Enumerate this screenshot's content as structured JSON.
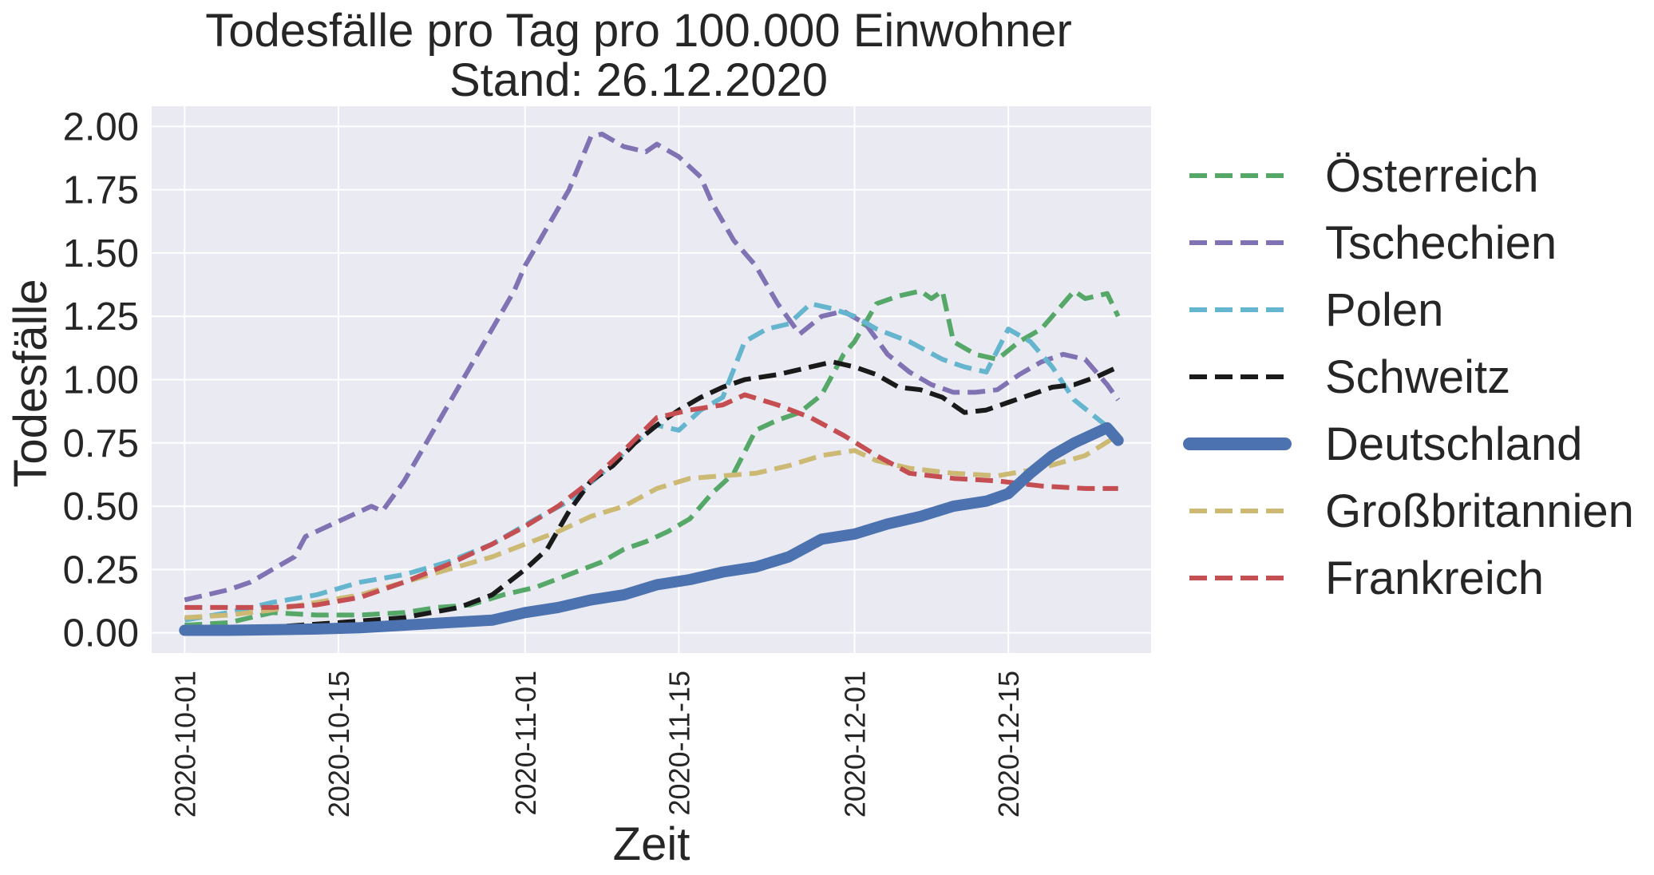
{
  "chart_data": {
    "type": "line",
    "title": "Todesfälle pro Tag pro 100.000 Einwohner",
    "subtitle": "Stand: 26.12.2020",
    "xlabel": "Zeit",
    "ylabel": "Todesfälle",
    "ylim": [
      -0.08,
      2.08
    ],
    "xlim": [
      "2020-09-28",
      "2020-12-28"
    ],
    "yticks": [
      "0.00",
      "0.25",
      "0.50",
      "0.75",
      "1.00",
      "1.25",
      "1.50",
      "1.75",
      "2.00"
    ],
    "xticks": [
      "2020-10-01",
      "2020-10-15",
      "2020-11-01",
      "2020-11-15",
      "2020-12-01",
      "2020-12-15"
    ],
    "grid": true,
    "legend_position": "outside-right",
    "series": [
      {
        "name": "Österreich",
        "color": "#55a868",
        "style": "dashed",
        "points": [
          [
            "2020-10-01",
            0.03
          ],
          [
            "2020-10-05",
            0.04
          ],
          [
            "2020-10-09",
            0.08
          ],
          [
            "2020-10-13",
            0.07
          ],
          [
            "2020-10-17",
            0.07
          ],
          [
            "2020-10-21",
            0.08
          ],
          [
            "2020-10-24",
            0.1
          ],
          [
            "2020-10-27",
            0.11
          ],
          [
            "2020-10-30",
            0.15
          ],
          [
            "2020-11-02",
            0.18
          ],
          [
            "2020-11-05",
            0.23
          ],
          [
            "2020-11-08",
            0.28
          ],
          [
            "2020-11-10",
            0.33
          ],
          [
            "2020-11-12",
            0.36
          ],
          [
            "2020-11-14",
            0.4
          ],
          [
            "2020-11-16",
            0.45
          ],
          [
            "2020-11-18",
            0.55
          ],
          [
            "2020-11-20",
            0.63
          ],
          [
            "2020-11-22",
            0.8
          ],
          [
            "2020-11-24",
            0.84
          ],
          [
            "2020-11-26",
            0.87
          ],
          [
            "2020-11-28",
            0.94
          ],
          [
            "2020-11-30",
            1.1
          ],
          [
            "2020-12-01",
            1.15
          ],
          [
            "2020-12-03",
            1.3
          ],
          [
            "2020-12-05",
            1.33
          ],
          [
            "2020-12-07",
            1.35
          ],
          [
            "2020-12-08",
            1.32
          ],
          [
            "2020-12-09",
            1.35
          ],
          [
            "2020-12-10",
            1.15
          ],
          [
            "2020-12-12",
            1.1
          ],
          [
            "2020-12-14",
            1.08
          ],
          [
            "2020-12-16",
            1.15
          ],
          [
            "2020-12-18",
            1.2
          ],
          [
            "2020-12-20",
            1.3
          ],
          [
            "2020-12-21",
            1.35
          ],
          [
            "2020-12-22",
            1.32
          ],
          [
            "2020-12-24",
            1.34
          ],
          [
            "2020-12-25",
            1.25
          ]
        ]
      },
      {
        "name": "Tschechien",
        "color": "#8172b3",
        "style": "dashed",
        "points": [
          [
            "2020-10-01",
            0.13
          ],
          [
            "2020-10-03",
            0.15
          ],
          [
            "2020-10-05",
            0.17
          ],
          [
            "2020-10-07",
            0.2
          ],
          [
            "2020-10-09",
            0.25
          ],
          [
            "2020-10-11",
            0.3
          ],
          [
            "2020-10-12",
            0.38
          ],
          [
            "2020-10-14",
            0.42
          ],
          [
            "2020-10-16",
            0.46
          ],
          [
            "2020-10-18",
            0.5
          ],
          [
            "2020-10-19",
            0.48
          ],
          [
            "2020-10-21",
            0.6
          ],
          [
            "2020-10-23",
            0.75
          ],
          [
            "2020-10-25",
            0.9
          ],
          [
            "2020-10-27",
            1.05
          ],
          [
            "2020-10-29",
            1.2
          ],
          [
            "2020-10-31",
            1.35
          ],
          [
            "2020-11-01",
            1.45
          ],
          [
            "2020-11-03",
            1.6
          ],
          [
            "2020-11-05",
            1.75
          ],
          [
            "2020-11-07",
            1.96
          ],
          [
            "2020-11-08",
            1.97
          ],
          [
            "2020-11-10",
            1.92
          ],
          [
            "2020-11-12",
            1.9
          ],
          [
            "2020-11-13",
            1.93
          ],
          [
            "2020-11-15",
            1.88
          ],
          [
            "2020-11-17",
            1.8
          ],
          [
            "2020-11-18",
            1.7
          ],
          [
            "2020-11-20",
            1.55
          ],
          [
            "2020-11-22",
            1.45
          ],
          [
            "2020-11-24",
            1.3
          ],
          [
            "2020-11-26",
            1.18
          ],
          [
            "2020-11-28",
            1.25
          ],
          [
            "2020-11-30",
            1.27
          ],
          [
            "2020-12-02",
            1.22
          ],
          [
            "2020-12-04",
            1.1
          ],
          [
            "2020-12-06",
            1.03
          ],
          [
            "2020-12-08",
            0.98
          ],
          [
            "2020-12-10",
            0.95
          ],
          [
            "2020-12-12",
            0.95
          ],
          [
            "2020-12-14",
            0.96
          ],
          [
            "2020-12-16",
            1.02
          ],
          [
            "2020-12-18",
            1.07
          ],
          [
            "2020-12-20",
            1.1
          ],
          [
            "2020-12-22",
            1.08
          ],
          [
            "2020-12-24",
            0.98
          ],
          [
            "2020-12-25",
            0.92
          ]
        ]
      },
      {
        "name": "Polen",
        "color": "#64b5cd",
        "style": "dashed",
        "points": [
          [
            "2020-10-01",
            0.05
          ],
          [
            "2020-10-05",
            0.08
          ],
          [
            "2020-10-09",
            0.12
          ],
          [
            "2020-10-13",
            0.15
          ],
          [
            "2020-10-17",
            0.2
          ],
          [
            "2020-10-21",
            0.23
          ],
          [
            "2020-10-25",
            0.28
          ],
          [
            "2020-10-29",
            0.35
          ],
          [
            "2020-11-02",
            0.45
          ],
          [
            "2020-11-05",
            0.52
          ],
          [
            "2020-11-08",
            0.63
          ],
          [
            "2020-11-11",
            0.75
          ],
          [
            "2020-11-13",
            0.82
          ],
          [
            "2020-11-15",
            0.8
          ],
          [
            "2020-11-17",
            0.88
          ],
          [
            "2020-11-19",
            0.93
          ],
          [
            "2020-11-21",
            1.15
          ],
          [
            "2020-11-23",
            1.2
          ],
          [
            "2020-11-25",
            1.22
          ],
          [
            "2020-11-27",
            1.3
          ],
          [
            "2020-11-29",
            1.28
          ],
          [
            "2020-12-01",
            1.25
          ],
          [
            "2020-12-03",
            1.2
          ],
          [
            "2020-12-06",
            1.15
          ],
          [
            "2020-12-09",
            1.08
          ],
          [
            "2020-12-11",
            1.05
          ],
          [
            "2020-12-13",
            1.03
          ],
          [
            "2020-12-15",
            1.2
          ],
          [
            "2020-12-17",
            1.15
          ],
          [
            "2020-12-19",
            1.05
          ],
          [
            "2020-12-21",
            0.92
          ],
          [
            "2020-12-23",
            0.85
          ],
          [
            "2020-12-25",
            0.78
          ]
        ]
      },
      {
        "name": "Schweitz",
        "color": "#1a1a1a",
        "style": "dashed",
        "points": [
          [
            "2020-10-01",
            0.02
          ],
          [
            "2020-10-08",
            0.02
          ],
          [
            "2020-10-15",
            0.04
          ],
          [
            "2020-10-21",
            0.06
          ],
          [
            "2020-10-26",
            0.1
          ],
          [
            "2020-10-29",
            0.15
          ],
          [
            "2020-11-01",
            0.25
          ],
          [
            "2020-11-03",
            0.33
          ],
          [
            "2020-11-05",
            0.48
          ],
          [
            "2020-11-07",
            0.6
          ],
          [
            "2020-11-09",
            0.66
          ],
          [
            "2020-11-11",
            0.75
          ],
          [
            "2020-11-13",
            0.82
          ],
          [
            "2020-11-15",
            0.88
          ],
          [
            "2020-11-17",
            0.93
          ],
          [
            "2020-11-19",
            0.97
          ],
          [
            "2020-11-21",
            1.0
          ],
          [
            "2020-11-24",
            1.02
          ],
          [
            "2020-11-27",
            1.05
          ],
          [
            "2020-11-29",
            1.07
          ],
          [
            "2020-12-01",
            1.05
          ],
          [
            "2020-12-03",
            1.02
          ],
          [
            "2020-12-05",
            0.97
          ],
          [
            "2020-12-07",
            0.96
          ],
          [
            "2020-12-09",
            0.93
          ],
          [
            "2020-12-11",
            0.87
          ],
          [
            "2020-12-13",
            0.88
          ],
          [
            "2020-12-15",
            0.91
          ],
          [
            "2020-12-17",
            0.94
          ],
          [
            "2020-12-19",
            0.97
          ],
          [
            "2020-12-21",
            0.98
          ],
          [
            "2020-12-23",
            1.01
          ],
          [
            "2020-12-25",
            1.05
          ]
        ]
      },
      {
        "name": "Deutschland",
        "color": "#4c72b0",
        "style": "solid",
        "points": [
          [
            "2020-10-01",
            0.01
          ],
          [
            "2020-10-05",
            0.01
          ],
          [
            "2020-10-09",
            0.012
          ],
          [
            "2020-10-13",
            0.015
          ],
          [
            "2020-10-17",
            0.02
          ],
          [
            "2020-10-21",
            0.03
          ],
          [
            "2020-10-25",
            0.04
          ],
          [
            "2020-10-29",
            0.05
          ],
          [
            "2020-11-01",
            0.08
          ],
          [
            "2020-11-04",
            0.1
          ],
          [
            "2020-11-07",
            0.13
          ],
          [
            "2020-11-10",
            0.15
          ],
          [
            "2020-11-13",
            0.19
          ],
          [
            "2020-11-16",
            0.21
          ],
          [
            "2020-11-19",
            0.24
          ],
          [
            "2020-11-22",
            0.26
          ],
          [
            "2020-11-25",
            0.3
          ],
          [
            "2020-11-28",
            0.37
          ],
          [
            "2020-12-01",
            0.39
          ],
          [
            "2020-12-04",
            0.43
          ],
          [
            "2020-12-07",
            0.46
          ],
          [
            "2020-12-10",
            0.5
          ],
          [
            "2020-12-13",
            0.52
          ],
          [
            "2020-12-15",
            0.55
          ],
          [
            "2020-12-17",
            0.63
          ],
          [
            "2020-12-19",
            0.7
          ],
          [
            "2020-12-21",
            0.75
          ],
          [
            "2020-12-23",
            0.79
          ],
          [
            "2020-12-24",
            0.81
          ],
          [
            "2020-12-25",
            0.76
          ]
        ]
      },
      {
        "name": "Großbritannien",
        "color": "#ccb974",
        "style": "dashed",
        "points": [
          [
            "2020-10-01",
            0.06
          ],
          [
            "2020-10-05",
            0.07
          ],
          [
            "2020-10-09",
            0.09
          ],
          [
            "2020-10-13",
            0.12
          ],
          [
            "2020-10-17",
            0.15
          ],
          [
            "2020-10-21",
            0.2
          ],
          [
            "2020-10-25",
            0.25
          ],
          [
            "2020-10-29",
            0.3
          ],
          [
            "2020-11-01",
            0.35
          ],
          [
            "2020-11-04",
            0.4
          ],
          [
            "2020-11-07",
            0.46
          ],
          [
            "2020-11-10",
            0.5
          ],
          [
            "2020-11-13",
            0.57
          ],
          [
            "2020-11-16",
            0.61
          ],
          [
            "2020-11-19",
            0.62
          ],
          [
            "2020-11-22",
            0.63
          ],
          [
            "2020-11-25",
            0.66
          ],
          [
            "2020-11-28",
            0.7
          ],
          [
            "2020-12-01",
            0.72
          ],
          [
            "2020-12-03",
            0.68
          ],
          [
            "2020-12-06",
            0.65
          ],
          [
            "2020-12-10",
            0.63
          ],
          [
            "2020-12-14",
            0.62
          ],
          [
            "2020-12-18",
            0.65
          ],
          [
            "2020-12-22",
            0.7
          ],
          [
            "2020-12-25",
            0.78
          ]
        ]
      },
      {
        "name": "Frankreich",
        "color": "#c44e52",
        "style": "dashed",
        "points": [
          [
            "2020-10-01",
            0.1
          ],
          [
            "2020-10-05",
            0.1
          ],
          [
            "2020-10-09",
            0.1
          ],
          [
            "2020-10-13",
            0.11
          ],
          [
            "2020-10-17",
            0.14
          ],
          [
            "2020-10-21",
            0.2
          ],
          [
            "2020-10-25",
            0.27
          ],
          [
            "2020-10-29",
            0.35
          ],
          [
            "2020-11-01",
            0.42
          ],
          [
            "2020-11-04",
            0.5
          ],
          [
            "2020-11-07",
            0.6
          ],
          [
            "2020-11-10",
            0.72
          ],
          [
            "2020-11-13",
            0.85
          ],
          [
            "2020-11-16",
            0.88
          ],
          [
            "2020-11-19",
            0.9
          ],
          [
            "2020-11-21",
            0.94
          ],
          [
            "2020-11-24",
            0.9
          ],
          [
            "2020-11-27",
            0.85
          ],
          [
            "2020-11-30",
            0.78
          ],
          [
            "2020-12-03",
            0.7
          ],
          [
            "2020-12-06",
            0.63
          ],
          [
            "2020-12-10",
            0.61
          ],
          [
            "2020-12-14",
            0.6
          ],
          [
            "2020-12-18",
            0.58
          ],
          [
            "2020-12-22",
            0.57
          ],
          [
            "2020-12-25",
            0.57
          ]
        ]
      }
    ]
  }
}
